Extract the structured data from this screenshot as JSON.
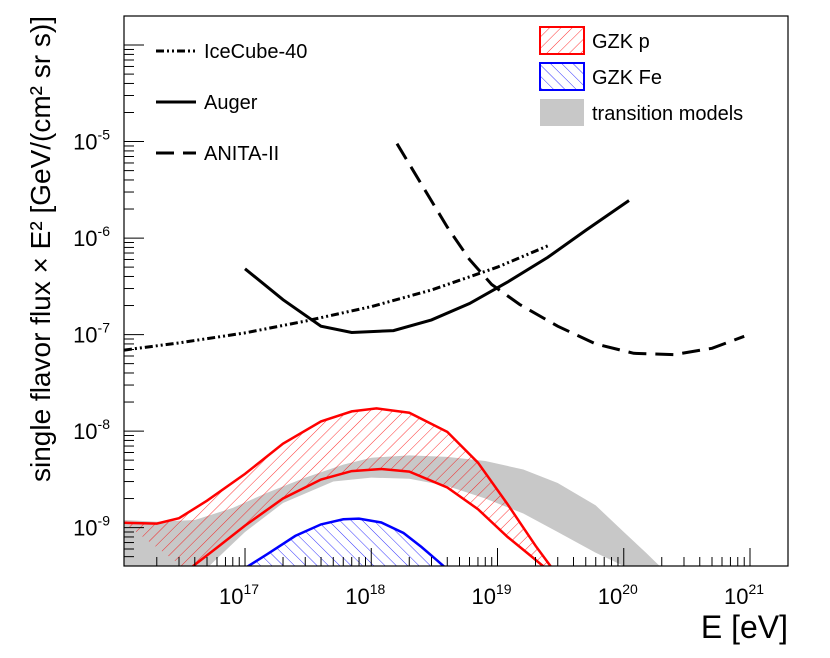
{
  "chart_data": {
    "type": "line",
    "xlabel": "E [eV]",
    "ylabel": "single flavor flux × E² [GeV/(cm² sr s)]",
    "xscale": "log",
    "yscale": "log",
    "xlim": [
      1.1e+16,
      2e+21
    ],
    "ylim": [
      4e-10,
      0.0002
    ],
    "x_tick_labels": [
      {
        "base": "10",
        "exp": "17",
        "value": 1e+17
      },
      {
        "base": "10",
        "exp": "18",
        "value": 1e+18
      },
      {
        "base": "10",
        "exp": "19",
        "value": 1e+19
      },
      {
        "base": "10",
        "exp": "20",
        "value": 1e+20
      },
      {
        "base": "10",
        "exp": "21",
        "value": 1e+21
      }
    ],
    "y_tick_labels": [
      {
        "base": "10",
        "exp": "-9",
        "value": 1e-09
      },
      {
        "base": "10",
        "exp": "-8",
        "value": 1e-08
      },
      {
        "base": "10",
        "exp": "-7",
        "value": 1e-07
      },
      {
        "base": "10",
        "exp": "-6",
        "value": 1e-06
      },
      {
        "base": "10",
        "exp": "-5",
        "value": 1e-05
      }
    ],
    "legend_left": [
      {
        "label": "IceCube-40",
        "series": "icecube"
      },
      {
        "label": "Auger",
        "series": "auger"
      },
      {
        "label": "ANITA-II",
        "series": "anita"
      }
    ],
    "legend_right": [
      {
        "label": "GZK p",
        "band": "gzk_p"
      },
      {
        "label": "GZK Fe",
        "band": "gzk_fe"
      },
      {
        "label": "transition models",
        "band": "transition"
      }
    ],
    "series": [
      {
        "name": "IceCube-40",
        "id": "icecube",
        "style": "dash-dot-dot",
        "color": "#000000",
        "x": [
          1.1e+16,
          3e+16,
          1e+17,
          3e+17,
          1e+18,
          3e+18,
          1e+19,
          2.5e+19
        ],
        "y": [
          6.9e-08,
          8.2e-08,
          1.04e-07,
          1.38e-07,
          1.95e-07,
          2.9e-07,
          5e-07,
          8.3e-07
        ]
      },
      {
        "name": "Auger",
        "id": "auger",
        "style": "solid",
        "color": "#000000",
        "x": [
          1e+17,
          2e+17,
          4e+17,
          7e+17,
          1.5e+18,
          3e+18,
          6e+18,
          1.2e+19,
          2.5e+19,
          5e+19,
          1.1e+20
        ],
        "y": [
          4.8e-07,
          2.3e-07,
          1.22e-07,
          1.05e-07,
          1.1e-07,
          1.42e-07,
          2.1e-07,
          3.5e-07,
          6.3e-07,
          1.2e-06,
          2.45e-06
        ]
      },
      {
        "name": "ANITA-II",
        "id": "anita",
        "style": "long-dash",
        "color": "#000000",
        "x": [
          1.6e+18,
          2.5e+18,
          4e+18,
          6e+18,
          9e+18,
          1.5e+19,
          3e+19,
          6e+19,
          1.2e+20,
          2.5e+20,
          5e+20,
          9e+20
        ],
        "y": [
          9.5e-06,
          3.6e-06,
          1.3e-06,
          6e-07,
          3.3e-07,
          2.05e-07,
          1.22e-07,
          8e-08,
          6.4e-08,
          6.2e-08,
          7.2e-08,
          9.6e-08
        ]
      }
    ],
    "bands": [
      {
        "name": "GZK p",
        "id": "gzk_p",
        "color": "#ff0000",
        "fill": "hatch-forward",
        "upper": {
          "x": [
            1.1e+16,
            2e+16,
            3e+16,
            5e+16,
            1e+17,
            2e+17,
            4e+17,
            7e+17,
            1.1e+18,
            2e+18,
            4e+18,
            7e+18,
            1.2e+19,
            2e+19,
            2.7e+19
          ],
          "y": [
            1.12e-09,
            1.1e-09,
            1.25e-09,
            1.9e-09,
            3.6e-09,
            7.4e-09,
            1.26e-08,
            1.6e-08,
            1.72e-08,
            1.55e-08,
            9.8e-09,
            4.7e-09,
            1.75e-09,
            6.5e-10,
            3.8e-10
          ]
        },
        "lower": {
          "x": [
            3.5e+16,
            6e+16,
            1e+17,
            2e+17,
            4e+17,
            7e+17,
            1.2e+18,
            2e+18,
            4e+18,
            7e+18,
            1.2e+19,
            1.8e+19,
            2.4e+19
          ],
          "y": [
            3.6e-10,
            6.2e-10,
            1.05e-09,
            2e-09,
            3.15e-09,
            3.85e-09,
            4.05e-09,
            3.8e-09,
            2.6e-09,
            1.55e-09,
            8e-10,
            5.2e-10,
            3.8e-10
          ]
        }
      },
      {
        "name": "GZK Fe",
        "id": "gzk_fe",
        "color": "#0000ff",
        "fill": "hatch-backward",
        "upper": {
          "x": [
            1e+17,
            1.5e+17,
            2.5e+17,
            4e+17,
            6e+17,
            8e+17,
            1.2e+18,
            1.8e+18,
            2.5e+18,
            3.3e+18,
            3.9e+18
          ],
          "y": [
            3.8e-10,
            5.3e-10,
            8.2e-10,
            1.08e-09,
            1.22e-09,
            1.24e-09,
            1.13e-09,
            8.8e-10,
            6.3e-10,
            4.6e-10,
            3.8e-10
          ]
        },
        "lower": {
          "x": [
            1e+17,
            3.9e+18
          ],
          "y": [
            3.8e-10,
            3.8e-10
          ]
        }
      },
      {
        "name": "transition models",
        "id": "transition",
        "color": "#c8c8c8",
        "fill": "solid",
        "upper": {
          "x": [
            1.1e+16,
            2e+16,
            4e+16,
            8e+16,
            1.5e+17,
            3e+17,
            6e+17,
            1e+18,
            2e+18,
            4e+18,
            8e+18,
            1.6e+19,
            3e+19,
            6e+19,
            1e+20,
            1.5e+20,
            2e+20
          ],
          "y": [
            1.2e-09,
            1.15e-09,
            1.2e-09,
            1.6e-09,
            2.3e-09,
            3.3e-09,
            4.5e-09,
            5.3e-09,
            5.6e-09,
            5.4e-09,
            4.9e-09,
            4e-09,
            2.9e-09,
            1.7e-09,
            9e-10,
            5.5e-10,
            3.8e-10
          ]
        },
        "lower": {
          "x": [
            1.1e+16,
            2e+16,
            3e+16,
            5e+16,
            1e+17,
            2e+17,
            5e+17,
            1e+18,
            2e+18,
            4e+18,
            8e+18,
            1.6e+19,
            3e+19,
            6e+19,
            1e+20,
            1.4e+20
          ],
          "y": [
            3.8e-10,
            3.8e-10,
            3.8e-10,
            3.8e-10,
            9e-10,
            1.8e-09,
            3e-09,
            3.3e-09,
            3.2e-09,
            2.7e-09,
            2e-09,
            1.4e-09,
            9e-10,
            5.5e-10,
            4e-10,
            3.8e-10
          ]
        }
      }
    ]
  }
}
